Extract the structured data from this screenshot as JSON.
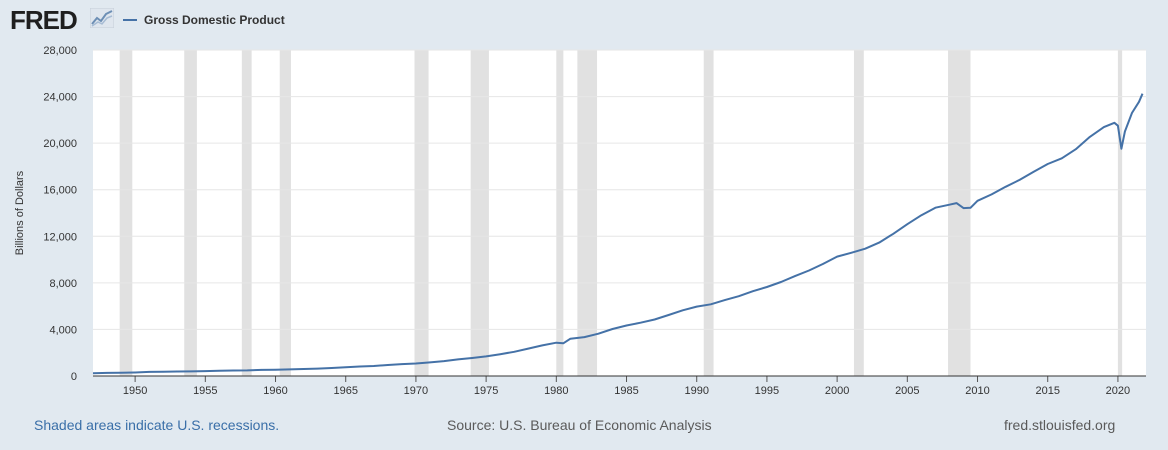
{
  "header": {
    "logo_text": "FRED",
    "logo_icon": "line-graph-icon"
  },
  "footer": {
    "recession_note": "Shaded areas indicate U.S. recessions.",
    "source": "Source: U.S. Bureau of Economic Analysis",
    "site": "fred.stlouisfed.org"
  },
  "colors": {
    "background": "#e1e9f0",
    "plot": "#ffffff",
    "line": "#4572a7",
    "recession": "#e1e1e1",
    "grid": "#e6e6e6"
  },
  "chart_data": {
    "type": "line",
    "title": "",
    "xlabel": "",
    "ylabel": "Billions of Dollars",
    "xlim": [
      1947,
      2022
    ],
    "ylim": [
      0,
      28000
    ],
    "yticks": [
      0,
      4000,
      8000,
      12000,
      16000,
      20000,
      24000,
      28000
    ],
    "ytick_labels": [
      "0",
      "4,000",
      "8,000",
      "12,000",
      "16,000",
      "20,000",
      "24,000",
      "28,000"
    ],
    "xticks": [
      1950,
      1955,
      1960,
      1965,
      1970,
      1975,
      1980,
      1985,
      1990,
      1995,
      2000,
      2005,
      2010,
      2015,
      2020
    ],
    "xtick_labels": [
      "1950",
      "1955",
      "1960",
      "1965",
      "1970",
      "1975",
      "1980",
      "1985",
      "1990",
      "1995",
      "2000",
      "2005",
      "2010",
      "2015",
      "2020"
    ],
    "grid": true,
    "legend_position": "top-left",
    "recessions": [
      [
        1948.9,
        1949.8
      ],
      [
        1953.5,
        1954.4
      ],
      [
        1957.6,
        1958.3
      ],
      [
        1960.3,
        1961.1
      ],
      [
        1969.9,
        1970.9
      ],
      [
        1973.9,
        1975.2
      ],
      [
        1980.0,
        1980.5
      ],
      [
        1981.5,
        1982.9
      ],
      [
        1990.5,
        1991.2
      ],
      [
        2001.2,
        2001.9
      ],
      [
        2007.9,
        2009.5
      ],
      [
        2020.0,
        2020.3
      ]
    ],
    "series": [
      {
        "name": "Gross Domestic Product",
        "x": [
          1947,
          1948,
          1949,
          1950,
          1951,
          1952,
          1953,
          1954,
          1955,
          1956,
          1957,
          1958,
          1959,
          1960,
          1961,
          1962,
          1963,
          1964,
          1965,
          1966,
          1967,
          1968,
          1969,
          1970,
          1971,
          1972,
          1973,
          1974,
          1975,
          1976,
          1977,
          1978,
          1979,
          1980,
          1980.5,
          1981,
          1982,
          1983,
          1984,
          1985,
          1986,
          1987,
          1988,
          1989,
          1990,
          1991,
          1992,
          1993,
          1994,
          1995,
          1996,
          1997,
          1998,
          1999,
          2000,
          2001,
          2002,
          2003,
          2004,
          2005,
          2006,
          2007,
          2008,
          2008.5,
          2009,
          2009.5,
          2010,
          2011,
          2012,
          2013,
          2014,
          2015,
          2016,
          2017,
          2018,
          2019,
          2019.75,
          2020,
          2020.25,
          2020.5,
          2021,
          2021.5,
          2021.75
        ],
        "values": [
          243,
          270,
          272,
          300,
          348,
          368,
          389,
          391,
          425,
          449,
          474,
          482,
          522,
          543,
          563,
          605,
          638,
          686,
          743,
          815,
          861,
          942,
          1019,
          1073,
          1165,
          1279,
          1425,
          1545,
          1684,
          1873,
          2082,
          2352,
          2627,
          2857,
          2810,
          3207,
          3343,
          3634,
          4037,
          4339,
          4579,
          4855,
          5236,
          5642,
          5963,
          6158,
          6520,
          6858,
          7287,
          7640,
          8073,
          8578,
          9063,
          9631,
          10252,
          10582,
          10936,
          11458,
          12214,
          13037,
          13815,
          14452,
          14713,
          14850,
          14420,
          14450,
          15049,
          15600,
          16254,
          16843,
          17551,
          18206,
          18695,
          19477,
          20533,
          21381,
          21750,
          21500,
          19520,
          21000,
          22600,
          23550,
          24250
        ]
      }
    ]
  }
}
